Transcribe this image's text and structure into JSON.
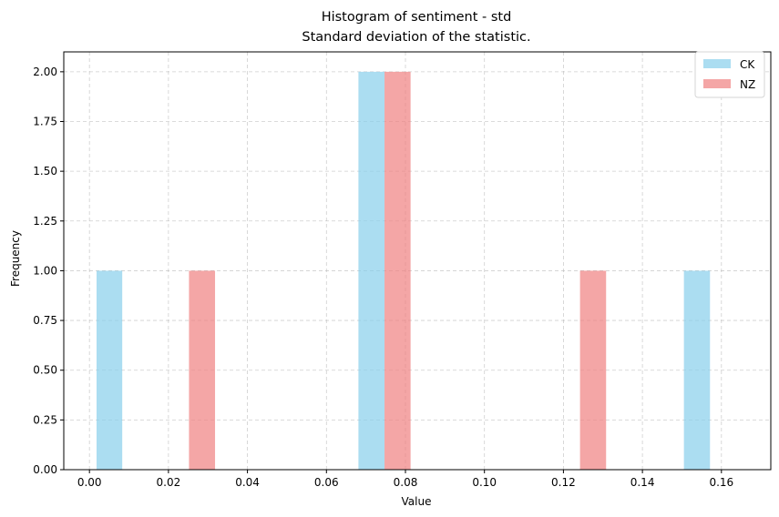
{
  "chart_data": {
    "type": "bar",
    "title": "Histogram of sentiment - std",
    "subtitle": "Standard deviation of the statistic.",
    "xlabel": "Value",
    "ylabel": "Frequency",
    "xlim": [
      -0.0065,
      0.1725
    ],
    "ylim": [
      0,
      2.1
    ],
    "xticks": [
      0.0,
      0.02,
      0.04,
      0.06,
      0.08,
      0.1,
      0.12,
      0.14,
      0.16
    ],
    "xtick_labels": [
      "0.00",
      "0.02",
      "0.04",
      "0.06",
      "0.08",
      "0.10",
      "0.12",
      "0.14",
      "0.16"
    ],
    "yticks": [
      0.0,
      0.25,
      0.5,
      0.75,
      1.0,
      1.25,
      1.5,
      1.75,
      2.0
    ],
    "ytick_labels": [
      "0.00",
      "0.25",
      "0.50",
      "0.75",
      "1.00",
      "1.25",
      "1.50",
      "1.75",
      "2.00"
    ],
    "grid": true,
    "legend_position": "top-right",
    "series": [
      {
        "name": "CK",
        "color": "#87CEEB",
        "bins": [
          {
            "start": 0.0018,
            "end": 0.0083,
            "count": 1
          },
          {
            "start": 0.0681,
            "end": 0.0747,
            "count": 2
          },
          {
            "start": 0.1505,
            "end": 0.1571,
            "count": 1
          }
        ]
      },
      {
        "name": "NZ",
        "color": "#F08080",
        "bins": [
          {
            "start": 0.0252,
            "end": 0.0318,
            "count": 1
          },
          {
            "start": 0.0747,
            "end": 0.0813,
            "count": 2
          },
          {
            "start": 0.1242,
            "end": 0.1308,
            "count": 1
          }
        ]
      }
    ]
  }
}
